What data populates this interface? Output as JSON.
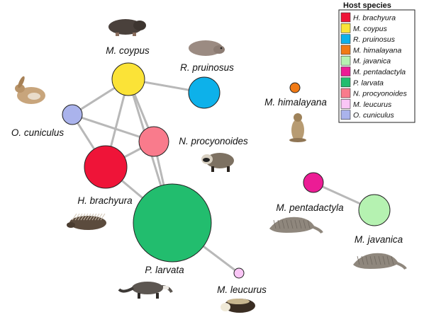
{
  "legend": {
    "title": "Host species",
    "items": [
      {
        "label": "H. brachyura",
        "color": "#ef1438"
      },
      {
        "label": "M. coypus",
        "color": "#fbe337"
      },
      {
        "label": "R. pruinosus",
        "color": "#0db1ea"
      },
      {
        "label": "M. himalayana",
        "color": "#f17a15"
      },
      {
        "label": "M. javanica",
        "color": "#b5f2b1"
      },
      {
        "label": "M. pentadactyla",
        "color": "#ec1c95"
      },
      {
        "label": "P. larvata",
        "color": "#22bd6e"
      },
      {
        "label": "N. procyonoides",
        "color": "#f97b8c"
      },
      {
        "label": "M. leucurus",
        "color": "#fac6f6"
      },
      {
        "label": "O. cuniculus",
        "color": "#aab3ec"
      }
    ]
  },
  "nodes": [
    {
      "id": "coypus",
      "label": "M. coypus",
      "color": "#fbe337",
      "animal": "mole-rat-icon"
    },
    {
      "id": "pruinosus",
      "label": "R. pruinosus",
      "color": "#0db1ea",
      "animal": "bamboo-rat-icon"
    },
    {
      "id": "cuniculus",
      "label": "O. cuniculus",
      "color": "#aab3ec",
      "animal": "rabbit-icon"
    },
    {
      "id": "procyonoides",
      "label": "N. procyonoides",
      "color": "#f97b8c",
      "animal": "raccoon-dog-icon"
    },
    {
      "id": "brachyura",
      "label": "H. brachyura",
      "color": "#ef1438",
      "animal": "porcupine-icon"
    },
    {
      "id": "larvata",
      "label": "P. larvata",
      "color": "#22bd6e",
      "animal": "civet-icon"
    },
    {
      "id": "leucurus",
      "label": "M. leucurus",
      "color": "#fac6f6",
      "animal": "badger-icon"
    },
    {
      "id": "himalayana",
      "label": "M. himalayana",
      "color": "#f17a15",
      "animal": "marmot-icon"
    },
    {
      "id": "pentadactyla",
      "label": "M. pentadactyla",
      "color": "#ec1c95",
      "animal": "pangolin-icon"
    },
    {
      "id": "javanica",
      "label": "M. javanica",
      "color": "#b5f2b1",
      "animal": "pangolin-icon"
    }
  ],
  "edges": [
    [
      "coypus",
      "pruinosus"
    ],
    [
      "coypus",
      "cuniculus"
    ],
    [
      "coypus",
      "procyonoides"
    ],
    [
      "coypus",
      "brachyura"
    ],
    [
      "coypus",
      "larvata"
    ],
    [
      "cuniculus",
      "procyonoides"
    ],
    [
      "cuniculus",
      "brachyura"
    ],
    [
      "procyonoides",
      "brachyura"
    ],
    [
      "procyonoides",
      "larvata"
    ],
    [
      "brachyura",
      "larvata"
    ],
    [
      "larvata",
      "leucurus"
    ],
    [
      "pentadactyla",
      "javanica"
    ]
  ]
}
